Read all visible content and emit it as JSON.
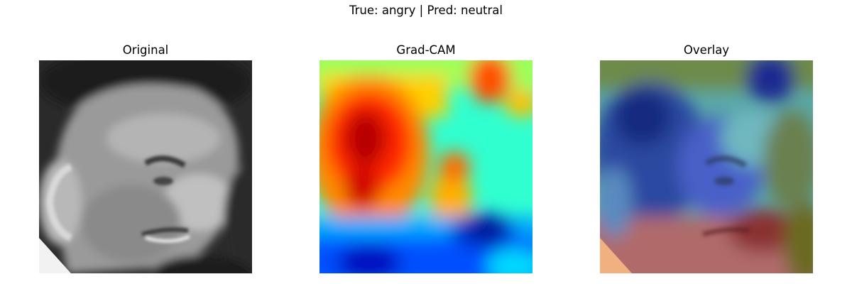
{
  "figure": {
    "suptitle": "True: angry | Pred: neutral"
  },
  "panels": [
    {
      "title": "Original"
    },
    {
      "title": "Grad-CAM"
    },
    {
      "title": "Overlay"
    }
  ]
}
